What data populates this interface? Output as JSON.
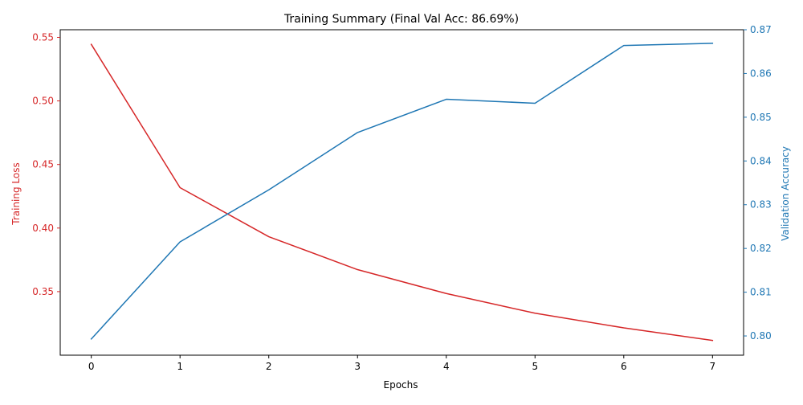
{
  "chart_data": {
    "type": "line",
    "title": "Training Summary (Final Val Acc: 86.69%)",
    "xlabel": "Epochs",
    "x": [
      0,
      1,
      2,
      3,
      4,
      5,
      6,
      7
    ],
    "xlim": [
      -0.35,
      7.35
    ],
    "xticks": [
      "0",
      "1",
      "2",
      "3",
      "4",
      "5",
      "6",
      "7"
    ],
    "left_axis": {
      "label": "Training Loss",
      "color": "#d62728",
      "ylim": [
        0.3,
        0.556
      ],
      "ticks": [
        0.35,
        0.4,
        0.45,
        0.5,
        0.55
      ],
      "tick_labels": [
        "0.35",
        "0.40",
        "0.45",
        "0.50",
        "0.55"
      ]
    },
    "right_axis": {
      "label": "Validation Accuracy",
      "color": "#1f77b4",
      "ylim": [
        0.7956,
        0.87
      ],
      "ticks": [
        0.8,
        0.81,
        0.82,
        0.83,
        0.84,
        0.85,
        0.86,
        0.87
      ],
      "tick_labels": [
        "0.80",
        "0.81",
        "0.82",
        "0.83",
        "0.84",
        "0.85",
        "0.86",
        "0.87"
      ]
    },
    "series": [
      {
        "axis": "left",
        "color": "#d62728",
        "values": [
          0.5445,
          0.4318,
          0.3932,
          0.3673,
          0.3485,
          0.333,
          0.3215,
          0.3116
        ]
      },
      {
        "axis": "right",
        "color": "#1f77b4",
        "values": [
          0.7993,
          0.8215,
          0.8334,
          0.8465,
          0.8541,
          0.8532,
          0.8664,
          0.8669
        ]
      }
    ],
    "grid": false,
    "legend": "none"
  }
}
